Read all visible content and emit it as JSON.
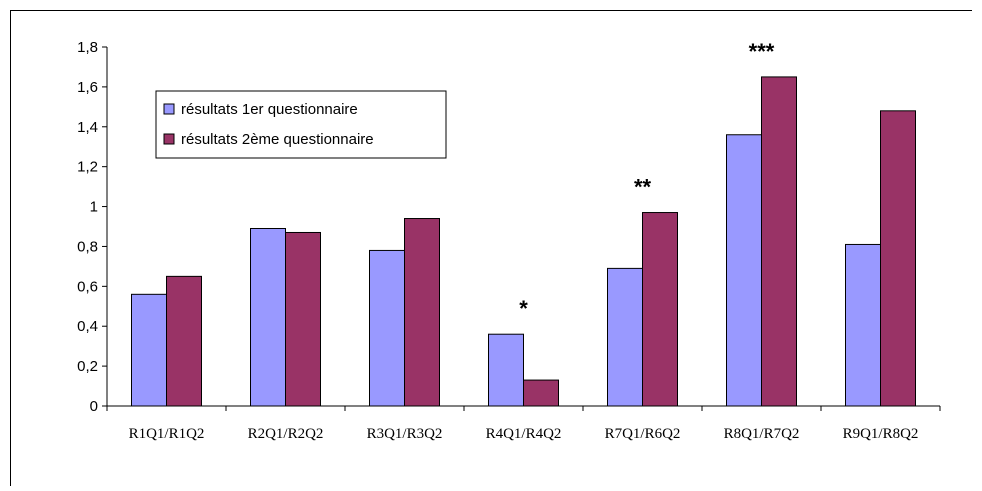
{
  "chart_data": {
    "type": "bar",
    "title": "",
    "xlabel": "",
    "ylabel": "",
    "ylim": [
      0,
      1.8
    ],
    "ytick_step": 0.2,
    "ytick_labels": [
      "0",
      "0,2",
      "0,4",
      "0,6",
      "0,8",
      "1",
      "1,2",
      "1,4",
      "1,6",
      "1,8"
    ],
    "categories": [
      "R1Q1/R1Q2",
      "R2Q1/R2Q2",
      "R3Q1/R3Q2",
      "R4Q1/R4Q2",
      "R7Q1/R6Q2",
      "R8Q1/R7Q2",
      "R9Q1/R8Q2"
    ],
    "series": [
      {
        "name": "résultats 1er questionnaire",
        "color": "#9999ff",
        "values": [
          0.56,
          0.89,
          0.78,
          0.36,
          0.69,
          1.36,
          0.81
        ]
      },
      {
        "name": "résultats 2ème questionnaire",
        "color": "#993366",
        "values": [
          0.65,
          0.87,
          0.94,
          0.13,
          0.97,
          1.65,
          1.48
        ]
      }
    ],
    "annotations": [
      {
        "category": "R4Q1/R4Q2",
        "text": "*"
      },
      {
        "category": "R7Q1/R6Q2",
        "text": "**"
      },
      {
        "category": "R8Q1/R7Q2",
        "text": "***"
      }
    ],
    "grid": false,
    "legend_position": "top-left"
  }
}
